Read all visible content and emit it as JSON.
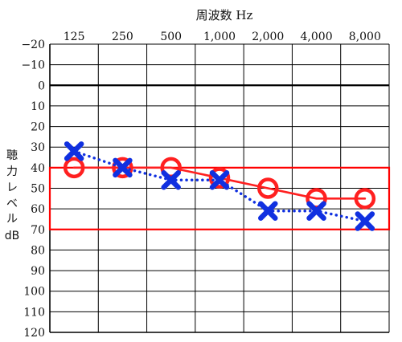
{
  "chart_data": {
    "type": "line",
    "title": "周波数 Hz",
    "ylabel": "聴力レベル dB",
    "ylabel_lines": [
      "聴",
      "力",
      "レ",
      "ベ",
      "ル",
      "dB"
    ],
    "categories": [
      "125",
      "250",
      "500",
      "1,000",
      "2,000",
      "4,000",
      "8,000"
    ],
    "y_tick_labels": [
      "−20",
      "−10",
      "0",
      "10",
      "20",
      "30",
      "40",
      "50",
      "60",
      "70",
      "80",
      "90",
      "100",
      "110",
      "120"
    ],
    "ylim": [
      -20,
      120
    ],
    "y_inverted": true,
    "grid": true,
    "reference_line": 0,
    "band": {
      "from": 40,
      "to": 70,
      "color": "#ff0000"
    },
    "series": [
      {
        "marker": "circle",
        "line": "solid",
        "color": "#ff2020",
        "values": [
          40,
          40,
          40,
          45,
          50,
          55,
          55
        ]
      },
      {
        "marker": "cross",
        "line": "dotted",
        "color": "#1030e0",
        "values": [
          32,
          40,
          46,
          46,
          61,
          61,
          66
        ]
      }
    ]
  }
}
